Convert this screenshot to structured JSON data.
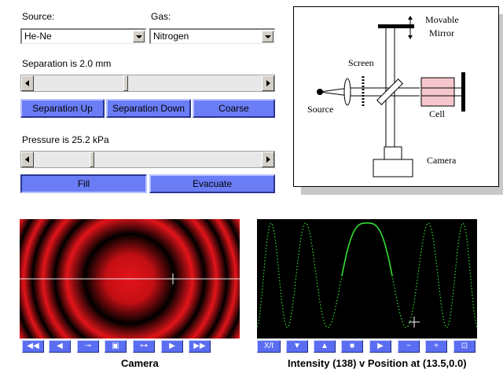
{
  "controls": {
    "source_label": "Source:",
    "source_value": "He-Ne",
    "gas_label": "Gas:",
    "gas_value": "Nitrogen",
    "separation_text": "Separation is 2.0 mm",
    "separation_up": "Separation Up",
    "separation_down": "Separation Down",
    "coarse": "Coarse",
    "pressure_text": "Pressure is 25.2 kPa",
    "fill": "Fill",
    "evacuate": "Evacuate"
  },
  "sliders": {
    "separation_fraction": 0.4,
    "pressure_fraction": 0.25
  },
  "diagram": {
    "movable_mirror_line1": "Movable",
    "movable_mirror_line2": "Mirror",
    "screen": "Screen",
    "source": "Source",
    "cell": "Cell",
    "camera": "Camera"
  },
  "camera_panel": {
    "caption": "Camera",
    "toolbar": [
      "◀◀",
      "◀",
      "⊸",
      "▣",
      "⊶",
      "▶",
      "▶▶"
    ],
    "colors": {
      "fringe": "#e3141a",
      "dark": "#000000"
    }
  },
  "intensity_panel": {
    "caption": "Intensity (138) v Position at (13.5,0.0)",
    "toolbar": [
      "X/t",
      "▼",
      "▲",
      "■",
      "▶",
      "−",
      "+",
      "⊡"
    ],
    "colors": {
      "trace": "#33dd33",
      "background": "#000000"
    }
  }
}
